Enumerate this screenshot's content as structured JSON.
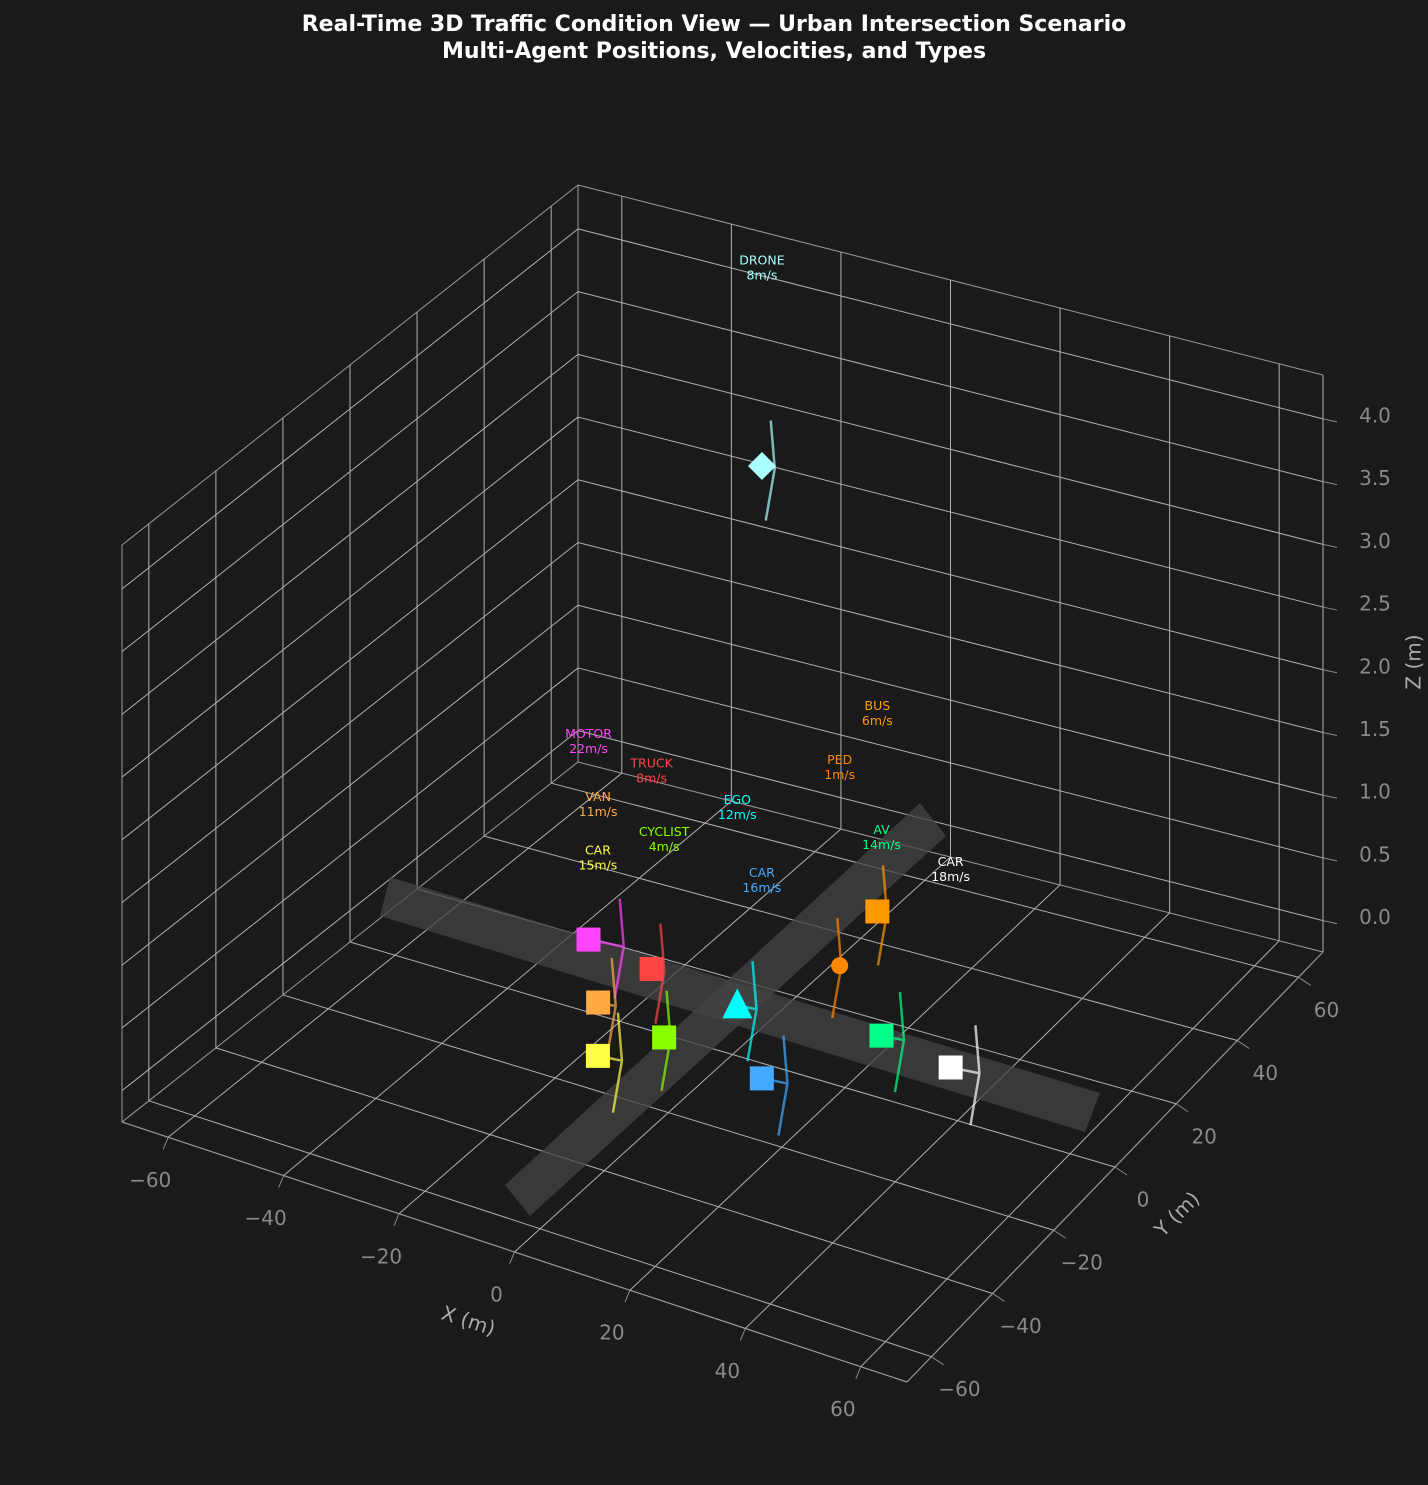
{
  "chart_data": {
    "type": "scatter3d",
    "title": "Real-Time 3D Traffic Condition View — Urban Intersection Scenario",
    "subtitle": "Multi-Agent Positions, Velocities, and Types",
    "xlabel": "X (m)",
    "ylabel": "Y (m)",
    "zlabel": "Z (m)",
    "xlim": [
      -68,
      68
    ],
    "ylim": [
      -68,
      68
    ],
    "zlim": [
      -0.25,
      4.35
    ],
    "xticks": [
      {
        "value": -60,
        "label": "−60"
      },
      {
        "value": -40,
        "label": "−40"
      },
      {
        "value": -20,
        "label": "−20"
      },
      0,
      20,
      40,
      60
    ],
    "yticks": [
      {
        "value": -60,
        "label": "−60"
      },
      {
        "value": -40,
        "label": "−40"
      },
      {
        "value": -20,
        "label": "−20"
      },
      0,
      20,
      40,
      60
    ],
    "zticks": [
      {
        "value": 0,
        "label": "0.0"
      },
      0.5,
      {
        "value": 1,
        "label": "1.0"
      },
      1.5,
      {
        "value": 2,
        "label": "2.0"
      },
      2.5,
      {
        "value": 3,
        "label": "3.0"
      },
      3.5,
      {
        "value": 4,
        "label": "4.0"
      }
    ],
    "grid": true,
    "points": [
      {
        "name": "MOTOR",
        "color": "#ff44ff",
        "marker": "square",
        "x": -32,
        "y": 11,
        "z": 0,
        "speed": 22,
        "speed_label": "22m/s"
      },
      {
        "name": "TRUCK",
        "color": "#ff4444",
        "marker": "square",
        "x": -19,
        "y": 8,
        "z": 0,
        "speed": 8,
        "speed_label": "8m/s"
      },
      {
        "name": "VAN",
        "color": "#ffaa44",
        "marker": "square",
        "x": -21,
        "y": -5,
        "z": 0,
        "speed": 11,
        "speed_label": "11m/s"
      },
      {
        "name": "CYCLIST",
        "color": "#88ff00",
        "marker": "square",
        "x": -7,
        "y": -9,
        "z": 0,
        "speed": 4,
        "speed_label": "4m/s"
      },
      {
        "name": "CAR",
        "color": "#ffff44",
        "marker": "square",
        "x": -13,
        "y": -19,
        "z": 0,
        "speed": 15,
        "speed_label": "15m/s"
      },
      {
        "name": "EGO",
        "color": "#00ffff",
        "marker": "triangle",
        "x": -2,
        "y": 5,
        "z": 0,
        "speed": 12,
        "speed_label": "12m/s"
      },
      {
        "name": "CAR",
        "color": "#44aaff",
        "marker": "square",
        "x": 12,
        "y": -12,
        "z": 0,
        "speed": 16,
        "speed_label": "16m/s"
      },
      {
        "name": "PED",
        "color": "#ff8800",
        "marker": "circle",
        "x": 6,
        "y": 23,
        "z": 0,
        "speed": 1,
        "speed_label": "1m/s"
      },
      {
        "name": "BUS",
        "color": "#ff9900",
        "marker": "square",
        "x": 3,
        "y": 40,
        "z": 0,
        "speed": 6,
        "speed_label": "6m/s"
      },
      {
        "name": "AV",
        "color": "#00ff88",
        "marker": "square",
        "x": 22,
        "y": 8,
        "z": 0,
        "speed": 14,
        "speed_label": "14m/s"
      },
      {
        "name": "CAR",
        "color": "#ffffff",
        "marker": "square",
        "x": 36,
        "y": 5,
        "z": 0,
        "speed": 18,
        "speed_label": "18m/s"
      },
      {
        "name": "DRONE",
        "color": "#aaffff",
        "marker": "diamond",
        "x": -12,
        "y": 30,
        "z": 3.6,
        "speed": 8,
        "speed_label": "8m/s"
      }
    ]
  }
}
